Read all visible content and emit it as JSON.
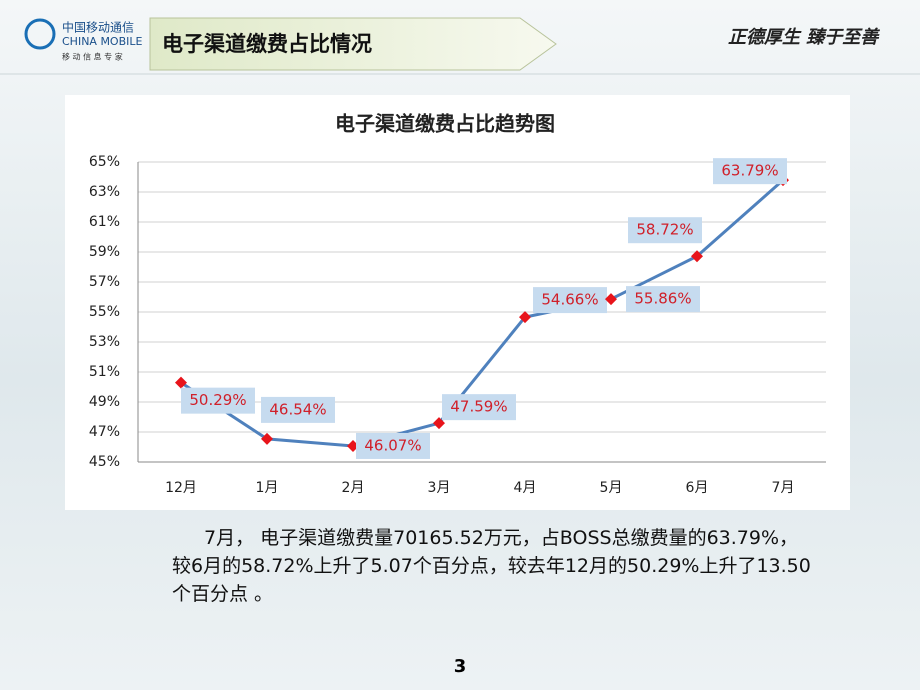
{
  "header": {
    "logo_cn": "中国移动通信",
    "logo_en": "CHINA MOBILE",
    "logo_slogan": "移 动 信 息 专 家",
    "title": "电子渠道缴费占比情况",
    "motto": "正德厚生  臻于至善"
  },
  "chart_data": {
    "type": "line",
    "title": "电子渠道缴费占比趋势图",
    "categories": [
      "12月",
      "1月",
      "2月",
      "3月",
      "4月",
      "5月",
      "6月",
      "7月"
    ],
    "values": [
      50.29,
      46.54,
      46.07,
      47.59,
      54.66,
      55.86,
      58.72,
      63.79
    ],
    "value_labels": [
      "50.29%",
      "46.54%",
      "46.07%",
      "47.59%",
      "54.66%",
      "55.86%",
      "58.72%",
      "63.79%"
    ],
    "color": "#4f81bd",
    "marker_color": "#e8141b",
    "ylim": [
      45,
      65
    ],
    "yticks": [
      {
        "value": 45,
        "label": "45%"
      },
      {
        "value": 47,
        "label": "47%"
      },
      {
        "value": 49,
        "label": "49%"
      },
      {
        "value": 51,
        "label": "51%"
      },
      {
        "value": 53,
        "label": "53%"
      },
      {
        "value": 55,
        "label": "55%"
      },
      {
        "value": 57,
        "label": "57%"
      },
      {
        "value": 59,
        "label": "59%"
      },
      {
        "value": 61,
        "label": "61%"
      },
      {
        "value": 63,
        "label": "63%"
      },
      {
        "value": 65,
        "label": "65%"
      }
    ],
    "grid": true
  },
  "body_text": "7月， 电子渠道缴费量70165.52万元，占BOSS总缴费量的63.79%，较6月的58.72%上升了5.07个百分点，较去年12月的50.29%上升了13.50个百分点 。",
  "page_number": "3"
}
